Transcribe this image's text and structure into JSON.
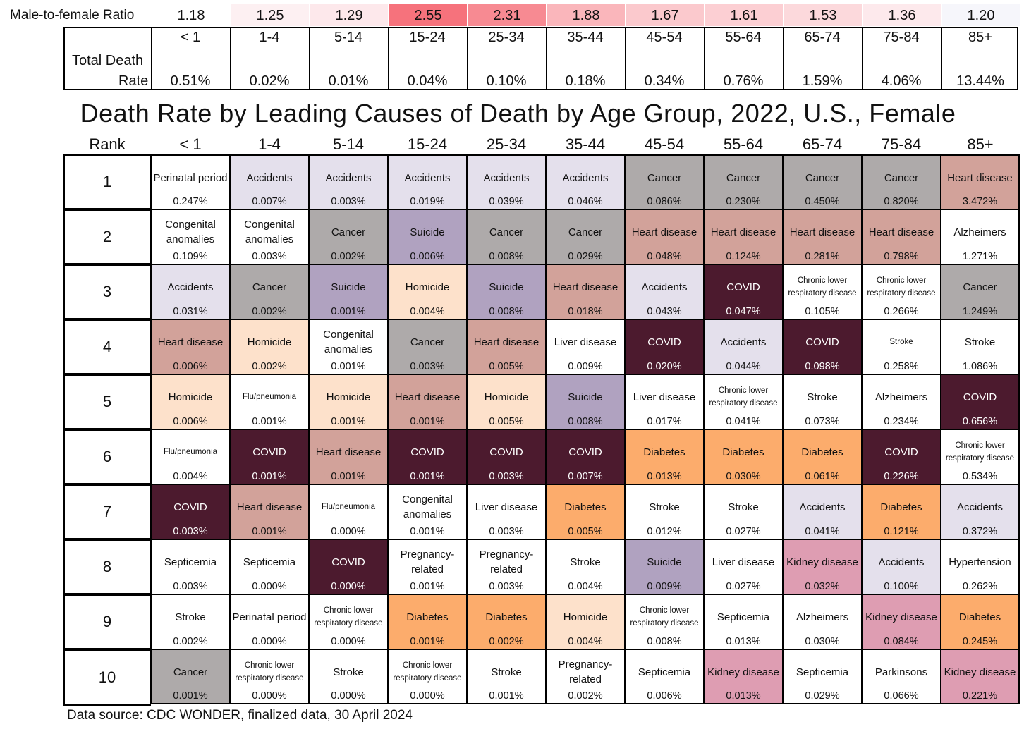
{
  "ratio_row": {
    "label": "Male-to-female Ratio",
    "values": [
      "1.18",
      "1.25",
      "1.29",
      "2.55",
      "2.31",
      "1.88",
      "1.67",
      "1.61",
      "1.53",
      "1.36",
      "1.20"
    ],
    "colors": [
      "#ffffff",
      "#fdf0f2",
      "#fde8eb",
      "#f6727c",
      "#f78a92",
      "#fab6bb",
      "#fbc9cd",
      "#fccfd3",
      "#fcd9dc",
      "#fde9ec",
      "#f6f6fb"
    ]
  },
  "total_death_rate": {
    "label_line1": "Total Death",
    "label_line2": "Rate",
    "ages": [
      "< 1",
      "1-4",
      "5-14",
      "15-24",
      "25-34",
      "35-44",
      "45-54",
      "55-64",
      "65-74",
      "75-84",
      "85+"
    ],
    "values": [
      "0.51%",
      "0.02%",
      "0.01%",
      "0.04%",
      "0.10%",
      "0.18%",
      "0.34%",
      "0.76%",
      "1.59%",
      "4.06%",
      "13.44%"
    ]
  },
  "title": "Death Rate by Leading Causes of Death by Age Group, 2022, U.S., Female",
  "header": {
    "rank": "Rank",
    "ages": [
      "< 1",
      "1-4",
      "5-14",
      "15-24",
      "25-34",
      "35-44",
      "45-54",
      "55-64",
      "65-74",
      "75-84",
      "85+"
    ]
  },
  "cause_colors": {
    "Accidents": "#e4e0ec",
    "Cancer": "#aeaaaa",
    "Heart disease": "#d2a29a",
    "Suicide": "#b0a2c0",
    "Homicide": "#fde1cb",
    "COVID": "#4c1a2e",
    "Diabetes": "#fcac6c",
    "Kidney disease": "#de9db2",
    "Other": "#ffffff"
  },
  "ranks": [
    "1",
    "2",
    "3",
    "4",
    "5",
    "6",
    "7",
    "8",
    "9",
    "10"
  ],
  "rows": [
    [
      {
        "cause": "Perinatal period",
        "rate": "0.247%"
      },
      {
        "cause": "Accidents",
        "rate": "0.007%"
      },
      {
        "cause": "Accidents",
        "rate": "0.003%"
      },
      {
        "cause": "Accidents",
        "rate": "0.019%"
      },
      {
        "cause": "Accidents",
        "rate": "0.039%"
      },
      {
        "cause": "Accidents",
        "rate": "0.046%"
      },
      {
        "cause": "Cancer",
        "rate": "0.086%"
      },
      {
        "cause": "Cancer",
        "rate": "0.230%"
      },
      {
        "cause": "Cancer",
        "rate": "0.450%"
      },
      {
        "cause": "Cancer",
        "rate": "0.820%"
      },
      {
        "cause": "Heart disease",
        "rate": "3.472%"
      }
    ],
    [
      {
        "cause": "Congenital anomalies",
        "rate": "0.109%"
      },
      {
        "cause": "Congenital anomalies",
        "rate": "0.003%"
      },
      {
        "cause": "Cancer",
        "rate": "0.002%"
      },
      {
        "cause": "Suicide",
        "rate": "0.006%"
      },
      {
        "cause": "Cancer",
        "rate": "0.008%"
      },
      {
        "cause": "Cancer",
        "rate": "0.029%"
      },
      {
        "cause": "Heart disease",
        "rate": "0.048%"
      },
      {
        "cause": "Heart disease",
        "rate": "0.124%"
      },
      {
        "cause": "Heart disease",
        "rate": "0.281%"
      },
      {
        "cause": "Heart disease",
        "rate": "0.798%"
      },
      {
        "cause": "Alzheimers",
        "rate": "1.271%"
      }
    ],
    [
      {
        "cause": "Accidents",
        "rate": "0.031%"
      },
      {
        "cause": "Cancer",
        "rate": "0.002%"
      },
      {
        "cause": "Suicide",
        "rate": "0.001%"
      },
      {
        "cause": "Homicide",
        "rate": "0.004%"
      },
      {
        "cause": "Suicide",
        "rate": "0.008%"
      },
      {
        "cause": "Heart disease",
        "rate": "0.018%"
      },
      {
        "cause": "Accidents",
        "rate": "0.043%"
      },
      {
        "cause": "COVID",
        "rate": "0.047%"
      },
      {
        "cause": "Chronic lower respiratory disease",
        "rate": "0.105%",
        "small": true
      },
      {
        "cause": "Chronic lower respiratory disease",
        "rate": "0.266%",
        "small": true
      },
      {
        "cause": "Cancer",
        "rate": "1.249%"
      }
    ],
    [
      {
        "cause": "Heart disease",
        "rate": "0.006%"
      },
      {
        "cause": "Homicide",
        "rate": "0.002%"
      },
      {
        "cause": "Congenital anomalies",
        "rate": "0.001%"
      },
      {
        "cause": "Cancer",
        "rate": "0.003%"
      },
      {
        "cause": "Heart disease",
        "rate": "0.005%"
      },
      {
        "cause": "Liver disease",
        "rate": "0.009%"
      },
      {
        "cause": "COVID",
        "rate": "0.020%"
      },
      {
        "cause": "Accidents",
        "rate": "0.044%"
      },
      {
        "cause": "COVID",
        "rate": "0.098%"
      },
      {
        "cause": "Stroke",
        "rate": "0.258%",
        "small": true
      },
      {
        "cause": "Stroke",
        "rate": "1.086%"
      }
    ],
    [
      {
        "cause": "Homicide",
        "rate": "0.006%"
      },
      {
        "cause": "Flu/pneumonia",
        "rate": "0.001%",
        "small": true
      },
      {
        "cause": "Homicide",
        "rate": "0.001%"
      },
      {
        "cause": "Heart disease",
        "rate": "0.001%"
      },
      {
        "cause": "Homicide",
        "rate": "0.005%"
      },
      {
        "cause": "Suicide",
        "rate": "0.008%"
      },
      {
        "cause": "Liver disease",
        "rate": "0.017%"
      },
      {
        "cause": "Chronic lower respiratory disease",
        "rate": "0.041%",
        "small": true
      },
      {
        "cause": "Stroke",
        "rate": "0.073%"
      },
      {
        "cause": "Alzheimers",
        "rate": "0.234%"
      },
      {
        "cause": "COVID",
        "rate": "0.656%"
      }
    ],
    [
      {
        "cause": "Flu/pneumonia",
        "rate": "0.004%",
        "small": true
      },
      {
        "cause": "COVID",
        "rate": "0.001%"
      },
      {
        "cause": "Heart disease",
        "rate": "0.001%"
      },
      {
        "cause": "COVID",
        "rate": "0.001%"
      },
      {
        "cause": "COVID",
        "rate": "0.003%"
      },
      {
        "cause": "COVID",
        "rate": "0.007%"
      },
      {
        "cause": "Diabetes",
        "rate": "0.013%"
      },
      {
        "cause": "Diabetes",
        "rate": "0.030%"
      },
      {
        "cause": "Diabetes",
        "rate": "0.061%"
      },
      {
        "cause": "COVID",
        "rate": "0.226%"
      },
      {
        "cause": "Chronic lower respiratory disease",
        "rate": "0.534%",
        "small": true
      }
    ],
    [
      {
        "cause": "COVID",
        "rate": "0.003%"
      },
      {
        "cause": "Heart disease",
        "rate": "0.001%"
      },
      {
        "cause": "Flu/pneumonia",
        "rate": "0.000%",
        "small": true
      },
      {
        "cause": "Congenital anomalies",
        "rate": "0.001%"
      },
      {
        "cause": "Liver disease",
        "rate": "0.003%"
      },
      {
        "cause": "Diabetes",
        "rate": "0.005%"
      },
      {
        "cause": "Stroke",
        "rate": "0.012%"
      },
      {
        "cause": "Stroke",
        "rate": "0.027%"
      },
      {
        "cause": "Accidents",
        "rate": "0.041%"
      },
      {
        "cause": "Diabetes",
        "rate": "0.121%"
      },
      {
        "cause": "Accidents",
        "rate": "0.372%"
      }
    ],
    [
      {
        "cause": "Septicemia",
        "rate": "0.003%"
      },
      {
        "cause": "Septicemia",
        "rate": "0.000%"
      },
      {
        "cause": "COVID",
        "rate": "0.000%"
      },
      {
        "cause": "Pregnancy-related",
        "rate": "0.001%"
      },
      {
        "cause": "Pregnancy-related",
        "rate": "0.003%"
      },
      {
        "cause": "Stroke",
        "rate": "0.004%"
      },
      {
        "cause": "Suicide",
        "rate": "0.009%"
      },
      {
        "cause": "Liver disease",
        "rate": "0.027%"
      },
      {
        "cause": "Kidney disease",
        "rate": "0.032%"
      },
      {
        "cause": "Accidents",
        "rate": "0.100%"
      },
      {
        "cause": "Hypertension",
        "rate": "0.262%"
      }
    ],
    [
      {
        "cause": "Stroke",
        "rate": "0.002%"
      },
      {
        "cause": "Perinatal period",
        "rate": "0.000%"
      },
      {
        "cause": "Chronic lower respiratory disease",
        "rate": "0.000%",
        "small": true
      },
      {
        "cause": "Diabetes",
        "rate": "0.001%"
      },
      {
        "cause": "Diabetes",
        "rate": "0.002%"
      },
      {
        "cause": "Homicide",
        "rate": "0.004%"
      },
      {
        "cause": "Chronic lower respiratory disease",
        "rate": "0.008%",
        "small": true
      },
      {
        "cause": "Septicemia",
        "rate": "0.013%"
      },
      {
        "cause": "Alzheimers",
        "rate": "0.030%"
      },
      {
        "cause": "Kidney disease",
        "rate": "0.084%"
      },
      {
        "cause": "Diabetes",
        "rate": "0.245%"
      }
    ],
    [
      {
        "cause": "Cancer",
        "rate": "0.001%"
      },
      {
        "cause": "Chronic lower respiratory disease",
        "rate": "0.000%",
        "small": true
      },
      {
        "cause": "Stroke",
        "rate": "0.000%"
      },
      {
        "cause": "Chronic lower respiratory disease",
        "rate": "0.000%",
        "small": true
      },
      {
        "cause": "Stroke",
        "rate": "0.001%"
      },
      {
        "cause": "Pregnancy-related",
        "rate": "0.002%"
      },
      {
        "cause": "Septicemia",
        "rate": "0.006%"
      },
      {
        "cause": "Kidney disease",
        "rate": "0.013%"
      },
      {
        "cause": "Septicemia",
        "rate": "0.029%"
      },
      {
        "cause": "Parkinsons",
        "rate": "0.066%"
      },
      {
        "cause": "Kidney disease",
        "rate": "0.221%"
      }
    ]
  ],
  "source": "Data source: CDC WONDER, finalized data, 30 April 2024",
  "chart_data": {
    "type": "table",
    "title": "Death Rate by Leading Causes of Death by Age Group, 2022, U.S., Female",
    "columns": [
      "< 1",
      "1-4",
      "5-14",
      "15-24",
      "25-34",
      "35-44",
      "45-54",
      "55-64",
      "65-74",
      "75-84",
      "85+"
    ],
    "male_to_female_ratio": [
      1.18,
      1.25,
      1.29,
      2.55,
      2.31,
      1.88,
      1.67,
      1.61,
      1.53,
      1.36,
      1.2
    ],
    "total_death_rate_pct": [
      0.51,
      0.02,
      0.01,
      0.04,
      0.1,
      0.18,
      0.34,
      0.76,
      1.59,
      4.06,
      13.44
    ]
  }
}
